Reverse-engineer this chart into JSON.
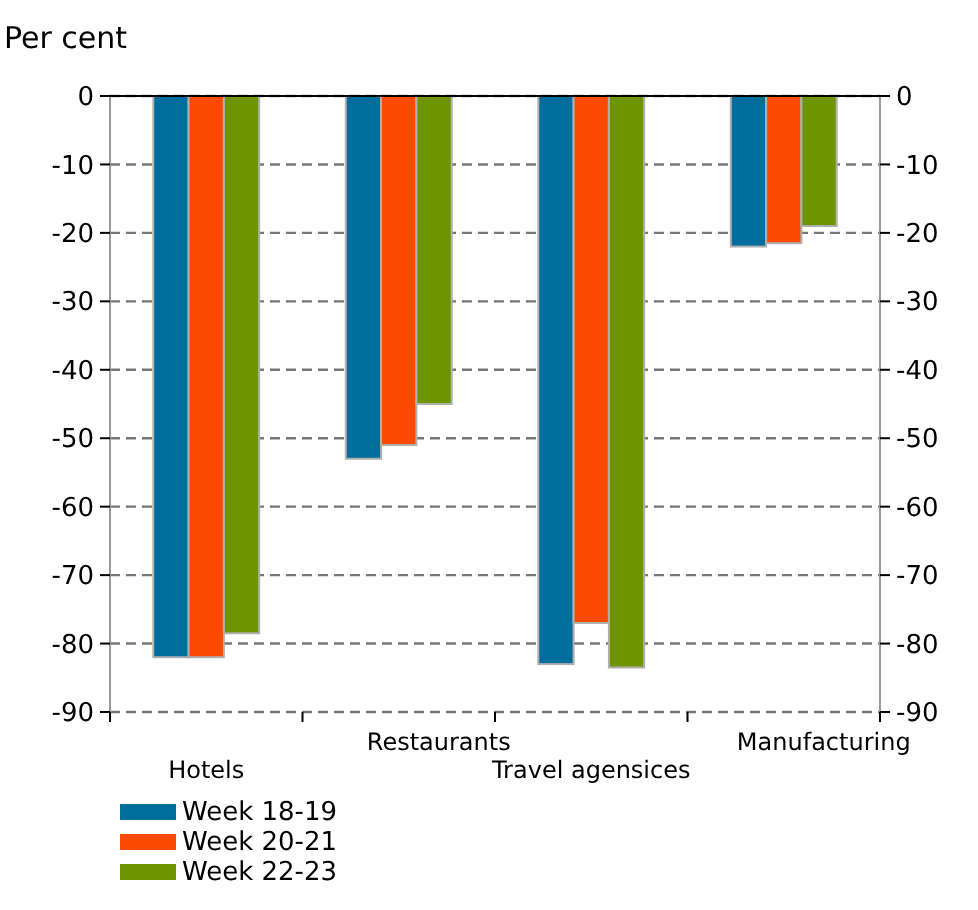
{
  "chart_data": {
    "type": "bar",
    "ylabel": "Per cent",
    "categories": [
      "Hotels",
      "Restaurants",
      "Travel agensices",
      "Manufacturing"
    ],
    "series": [
      {
        "name": "Week 18-19",
        "color": "#006e9c",
        "values": [
          -82,
          -53,
          -83,
          -22
        ]
      },
      {
        "name": "Week 20-21",
        "color": "#fa4a00",
        "values": [
          -82,
          -51,
          -77,
          -21.5
        ]
      },
      {
        "name": "Week 22-23",
        "color": "#6e9400",
        "values": [
          -78.5,
          -45,
          -83.5,
          -19
        ]
      }
    ],
    "ylim": [
      -90,
      0
    ],
    "yticks": [
      -90,
      -80,
      -70,
      -60,
      -50,
      -40,
      -30,
      -20,
      -10,
      0
    ],
    "y2lim": [
      -90,
      0
    ],
    "y2ticks": [
      -90,
      -80,
      -70,
      -60,
      -50,
      -40,
      -30,
      -20,
      -10,
      0
    ],
    "grid": "y",
    "legend": "bottom"
  }
}
